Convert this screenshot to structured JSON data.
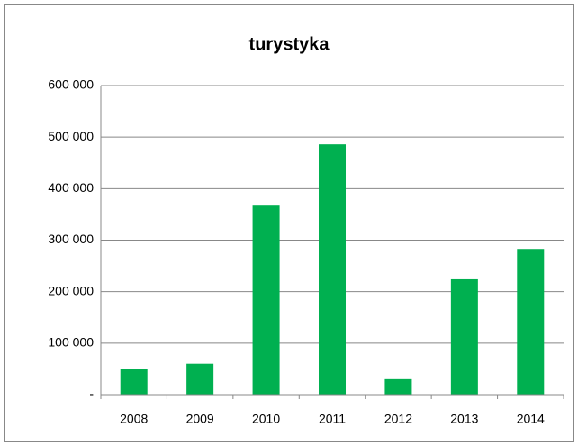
{
  "chart_data": {
    "type": "bar",
    "title": "turystyka",
    "categories": [
      "2008",
      "2009",
      "2010",
      "2011",
      "2012",
      "2013",
      "2014"
    ],
    "values": [
      50000,
      60000,
      367000,
      486000,
      30000,
      224000,
      283000
    ],
    "color": "#00b050",
    "ylim": [
      0,
      600000
    ],
    "yticks": [
      {
        "value": 0,
        "label": "-"
      },
      {
        "value": 100000,
        "label": "100 000"
      },
      {
        "value": 200000,
        "label": "200 000"
      },
      {
        "value": 300000,
        "label": "300 000"
      },
      {
        "value": 400000,
        "label": "400 000"
      },
      {
        "value": 500000,
        "label": "500 000"
      },
      {
        "value": 600000,
        "label": "600 000"
      }
    ],
    "grid": true
  }
}
